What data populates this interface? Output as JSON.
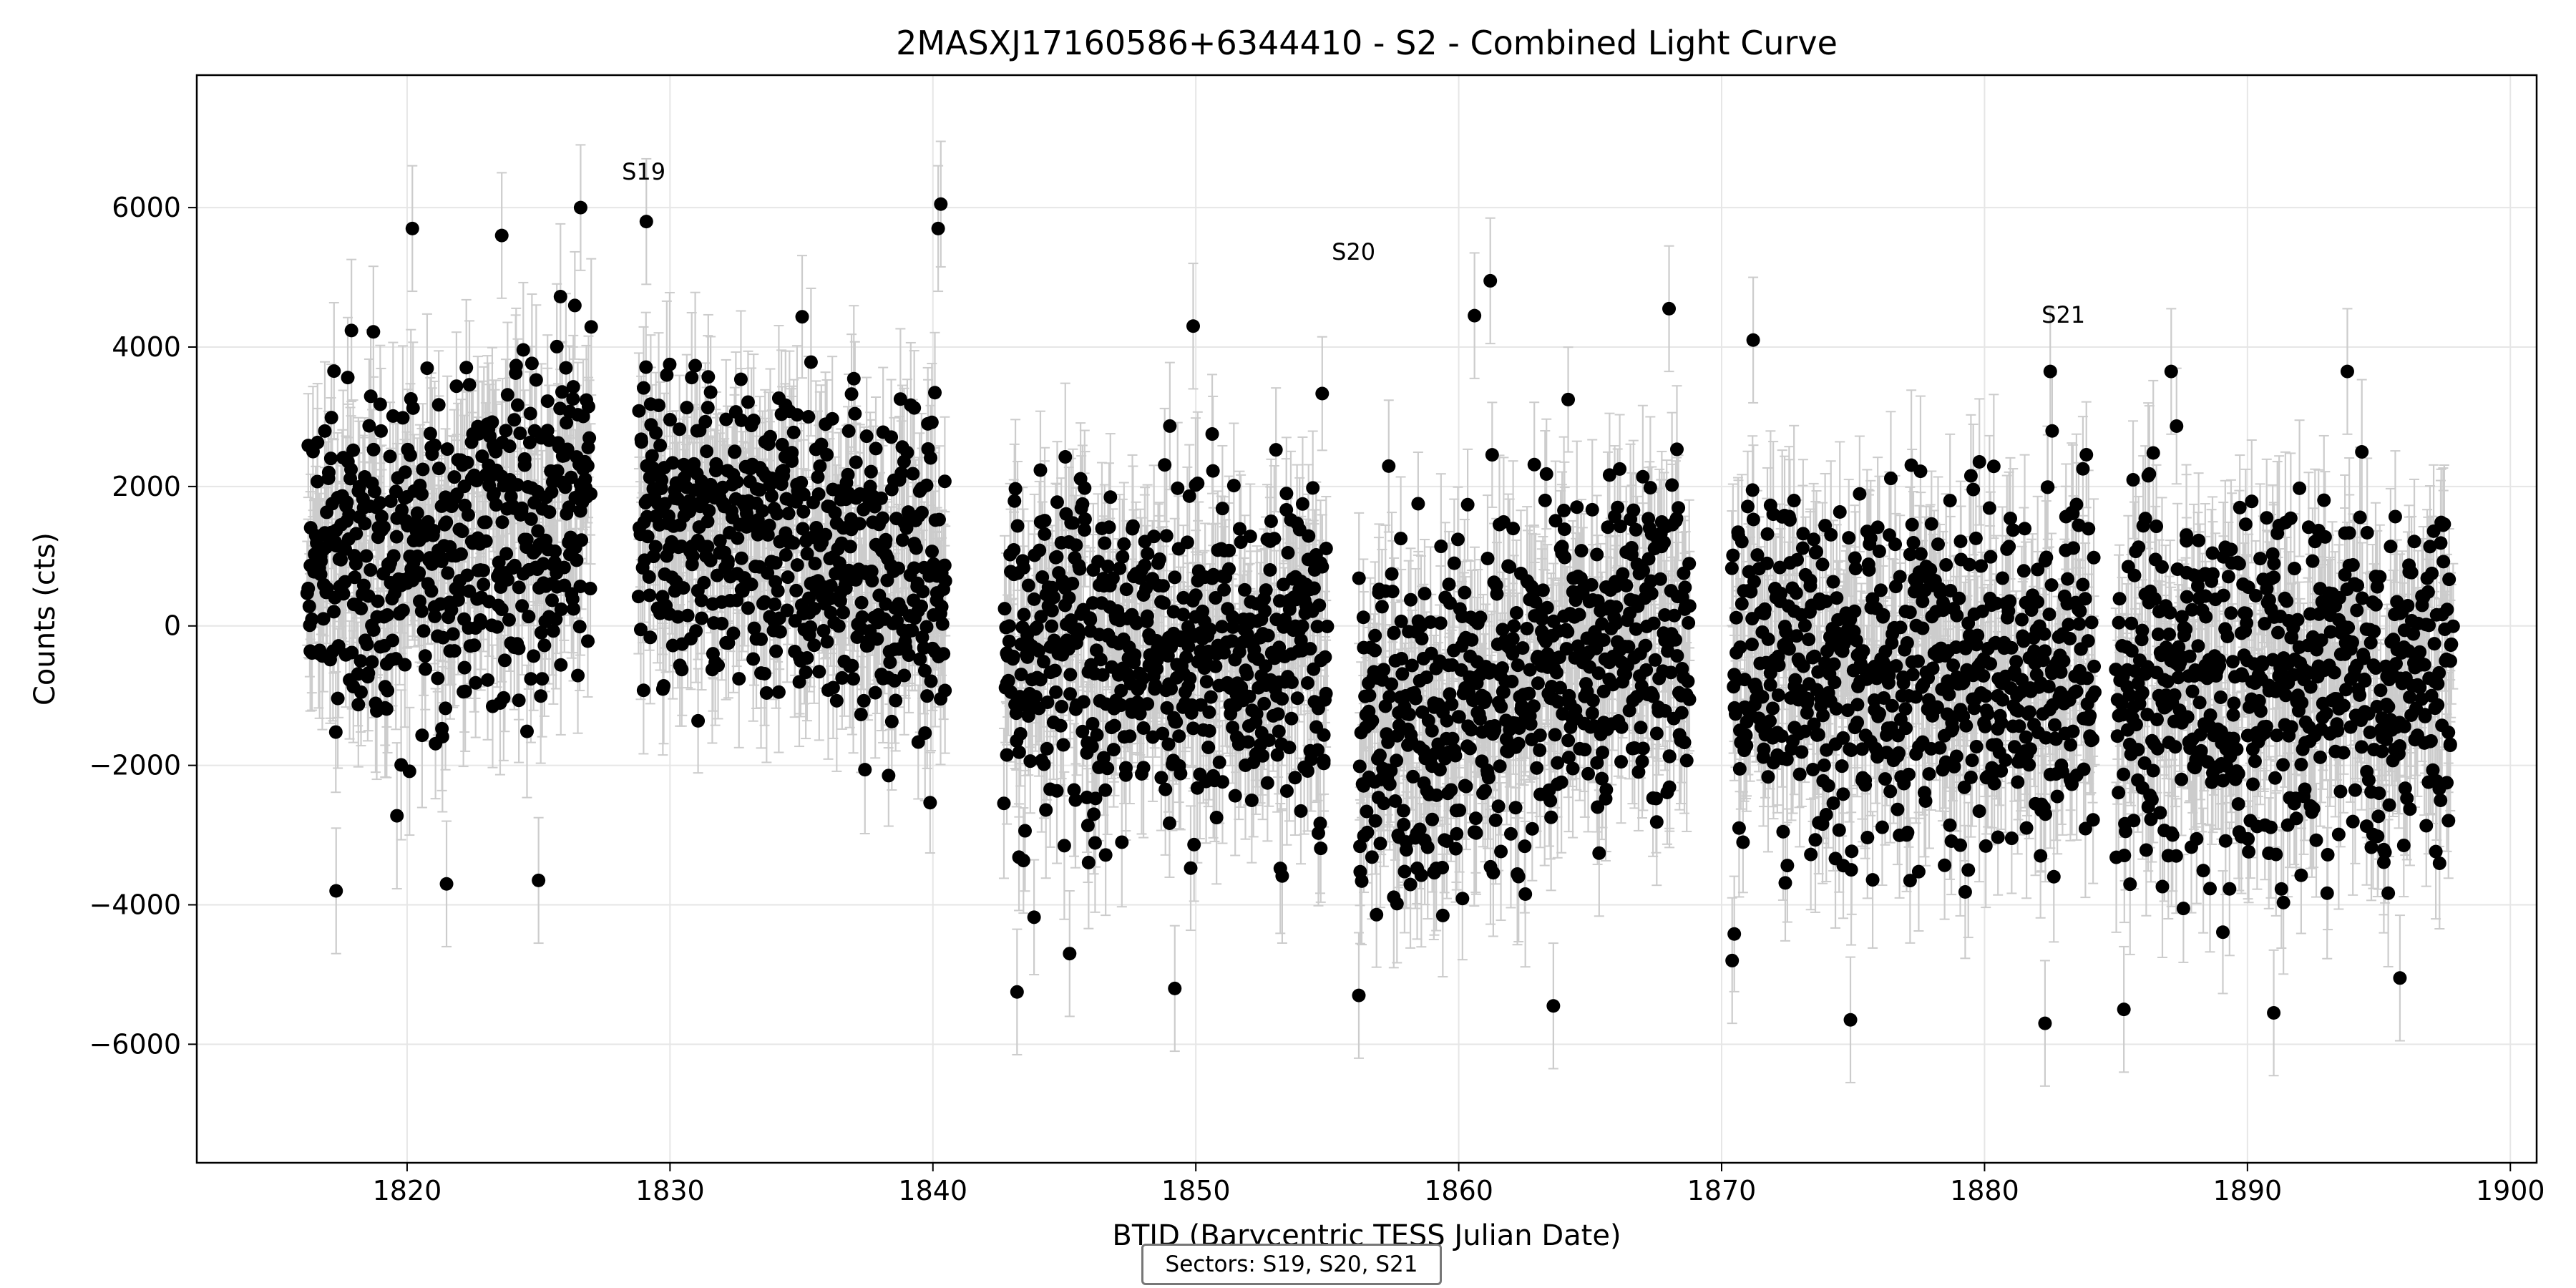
{
  "chart_data": {
    "type": "scatter",
    "title": "2MASXJ17160586+6344410 - S2 - Combined Light Curve",
    "xlabel": "BTJD (Barycentric TESS Julian Date)",
    "ylabel": "Counts (cts)",
    "xlim": [
      1812,
      1901
    ],
    "ylim": [
      -7700,
      7900
    ],
    "xticks": [
      1820,
      1830,
      1840,
      1850,
      1860,
      1870,
      1880,
      1890,
      1900
    ],
    "yticks": [
      -6000,
      -4000,
      -2000,
      0,
      2000,
      4000,
      6000
    ],
    "grid": true,
    "marker_color": "#000000",
    "errorbar_color": "#cccccc",
    "typical_error": 900,
    "sector_labels": [
      {
        "text": "S19",
        "x": 1829.0,
        "y": 6400
      },
      {
        "text": "S20",
        "x": 1856.0,
        "y": 5250
      },
      {
        "text": "S21",
        "x": 1883.0,
        "y": 4350
      }
    ],
    "sector_legend": "Sectors: S19, S20, S21",
    "segments": [
      {
        "sector": "S19",
        "x_start": 1816.2,
        "x_end": 1827.0,
        "mean_start": 700,
        "mean_end": 1700,
        "scatter": 1600
      },
      {
        "sector": "S19",
        "x_start": 1828.8,
        "x_end": 1840.5,
        "mean_start": 1700,
        "mean_end": 700,
        "scatter": 1600
      },
      {
        "sector": "S20",
        "x_start": 1842.7,
        "x_end": 1855.0,
        "mean_start": -400,
        "mean_end": -300,
        "scatter": 1700
      },
      {
        "sector": "S20",
        "x_start": 1856.2,
        "x_end": 1868.8,
        "mean_start": -1500,
        "mean_end": 0,
        "scatter": 1700
      },
      {
        "sector": "S21",
        "x_start": 1870.4,
        "x_end": 1884.2,
        "mean_start": -700,
        "mean_end": -600,
        "scatter": 1750
      },
      {
        "sector": "S21",
        "x_start": 1885.0,
        "x_end": 1897.8,
        "mean_start": -900,
        "mean_end": -700,
        "scatter": 1750
      }
    ],
    "notable_points": [
      {
        "x": 1820.2,
        "y": 5700
      },
      {
        "x": 1823.6,
        "y": 5600
      },
      {
        "x": 1826.6,
        "y": 6000
      },
      {
        "x": 1829.1,
        "y": 5800
      },
      {
        "x": 1840.3,
        "y": 6050
      },
      {
        "x": 1840.2,
        "y": 5700
      },
      {
        "x": 1821.5,
        "y": -3700
      },
      {
        "x": 1817.3,
        "y": -3800
      },
      {
        "x": 1825.0,
        "y": -3650
      },
      {
        "x": 1843.2,
        "y": -5250
      },
      {
        "x": 1849.2,
        "y": -5200
      },
      {
        "x": 1845.2,
        "y": -4700
      },
      {
        "x": 1849.9,
        "y": 4300
      },
      {
        "x": 1861.2,
        "y": 4950
      },
      {
        "x": 1860.6,
        "y": 4450
      },
      {
        "x": 1868.0,
        "y": 4550
      },
      {
        "x": 1856.2,
        "y": -5300
      },
      {
        "x": 1863.6,
        "y": -5450
      },
      {
        "x": 1871.2,
        "y": 4100
      },
      {
        "x": 1882.5,
        "y": 3650
      },
      {
        "x": 1874.9,
        "y": -5650
      },
      {
        "x": 1882.3,
        "y": -5700
      },
      {
        "x": 1885.3,
        "y": -5500
      },
      {
        "x": 1891.0,
        "y": -5550
      },
      {
        "x": 1887.1,
        "y": 3650
      },
      {
        "x": 1893.8,
        "y": 3650
      },
      {
        "x": 1870.4,
        "y": -4800
      },
      {
        "x": 1895.8,
        "y": -5050
      }
    ]
  }
}
